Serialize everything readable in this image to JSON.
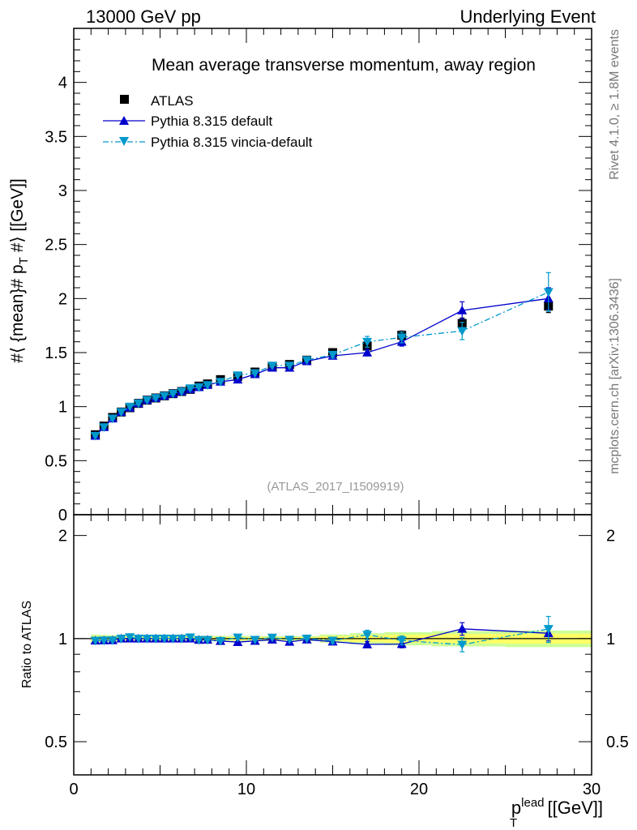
{
  "header": {
    "left": "13000 GeV pp",
    "right": "Underlying Event"
  },
  "side_text": {
    "rivet": "Rivet 4.1.0, ≥ 1.8M events",
    "mcplots": "mcplots.cern.ch [arXiv:1306.3436]"
  },
  "chart_data": {
    "type": "scatter",
    "title": "Mean average transverse momentum, away region",
    "analysis_id": "(ATLAS_2017_I1509919)",
    "xlabel": "p_T^lead [[GeV]]",
    "xlabel_main": "p",
    "xlabel_sub": "T",
    "xlabel_sup": "lead",
    "xlabel_unit": "[[GeV]]",
    "ylabel": "#⟨ {mean}# p_T #⟩ [[GeV]]",
    "ylabel_part1": "#⟨ {mean}# p",
    "ylabel_sub": "T",
    "ylabel_part2": " #⟩ [[GeV]]",
    "ratio_ylabel": "Ratio to ATLAS",
    "xlim": [
      0,
      30
    ],
    "ylim": [
      0,
      4.5
    ],
    "ratio_ylim": [
      0.4,
      2.3
    ],
    "x_ticks": [
      "0",
      "10",
      "20",
      "30"
    ],
    "y_ticks": [
      "0",
      "0.5",
      "1",
      "1.5",
      "2",
      "2.5",
      "3",
      "3.5",
      "4"
    ],
    "ratio_ticks": [
      "0.5",
      "1",
      "2"
    ],
    "legend": [
      "ATLAS",
      "Pythia 8.315 default",
      "Pythia 8.315 vincia-default"
    ],
    "x": [
      1.25,
      1.75,
      2.25,
      2.75,
      3.25,
      3.75,
      4.25,
      4.75,
      5.25,
      5.75,
      6.25,
      6.75,
      7.25,
      7.75,
      8.5,
      9.5,
      10.5,
      11.5,
      12.5,
      13.5,
      15.0,
      17.0,
      19.0,
      22.5,
      27.5
    ],
    "series": [
      {
        "name": "ATLAS",
        "values": [
          0.74,
          0.82,
          0.9,
          0.95,
          0.99,
          1.03,
          1.06,
          1.08,
          1.1,
          1.12,
          1.14,
          1.16,
          1.19,
          1.21,
          1.25,
          1.28,
          1.32,
          1.37,
          1.39,
          1.43,
          1.5,
          1.56,
          1.66,
          1.77,
          1.93
        ],
        "errors": [
          0.01,
          0.01,
          0.01,
          0.01,
          0.01,
          0.01,
          0.01,
          0.01,
          0.01,
          0.01,
          0.01,
          0.01,
          0.01,
          0.01,
          0.01,
          0.01,
          0.01,
          0.01,
          0.01,
          0.01,
          0.02,
          0.03,
          0.04,
          0.05,
          0.06
        ]
      },
      {
        "name": "Pythia 8.315 default",
        "values": [
          0.73,
          0.81,
          0.89,
          0.95,
          0.99,
          1.03,
          1.06,
          1.08,
          1.1,
          1.12,
          1.14,
          1.16,
          1.18,
          1.2,
          1.23,
          1.25,
          1.3,
          1.36,
          1.36,
          1.42,
          1.47,
          1.5,
          1.6,
          1.89,
          2.0
        ],
        "errors": [
          0.01,
          0.01,
          0.01,
          0.01,
          0.01,
          0.01,
          0.01,
          0.01,
          0.01,
          0.01,
          0.01,
          0.01,
          0.01,
          0.01,
          0.01,
          0.01,
          0.02,
          0.02,
          0.02,
          0.02,
          0.03,
          0.03,
          0.04,
          0.08,
          0.1
        ]
      },
      {
        "name": "Pythia 8.315 vincia-default",
        "values": [
          0.73,
          0.81,
          0.89,
          0.95,
          1.0,
          1.03,
          1.06,
          1.08,
          1.1,
          1.12,
          1.14,
          1.17,
          1.18,
          1.2,
          1.23,
          1.29,
          1.31,
          1.38,
          1.38,
          1.43,
          1.48,
          1.6,
          1.64,
          1.7,
          2.06
        ],
        "errors": [
          0.01,
          0.01,
          0.01,
          0.01,
          0.01,
          0.01,
          0.01,
          0.01,
          0.01,
          0.01,
          0.01,
          0.01,
          0.01,
          0.01,
          0.01,
          0.01,
          0.02,
          0.02,
          0.02,
          0.02,
          0.03,
          0.05,
          0.05,
          0.08,
          0.18
        ]
      }
    ],
    "colors": {
      "atlas": "#000000",
      "default": "#0000cc",
      "vincia": "#0099cc",
      "band_inner": "#ffff66",
      "band_outer": "#ccff99"
    }
  }
}
